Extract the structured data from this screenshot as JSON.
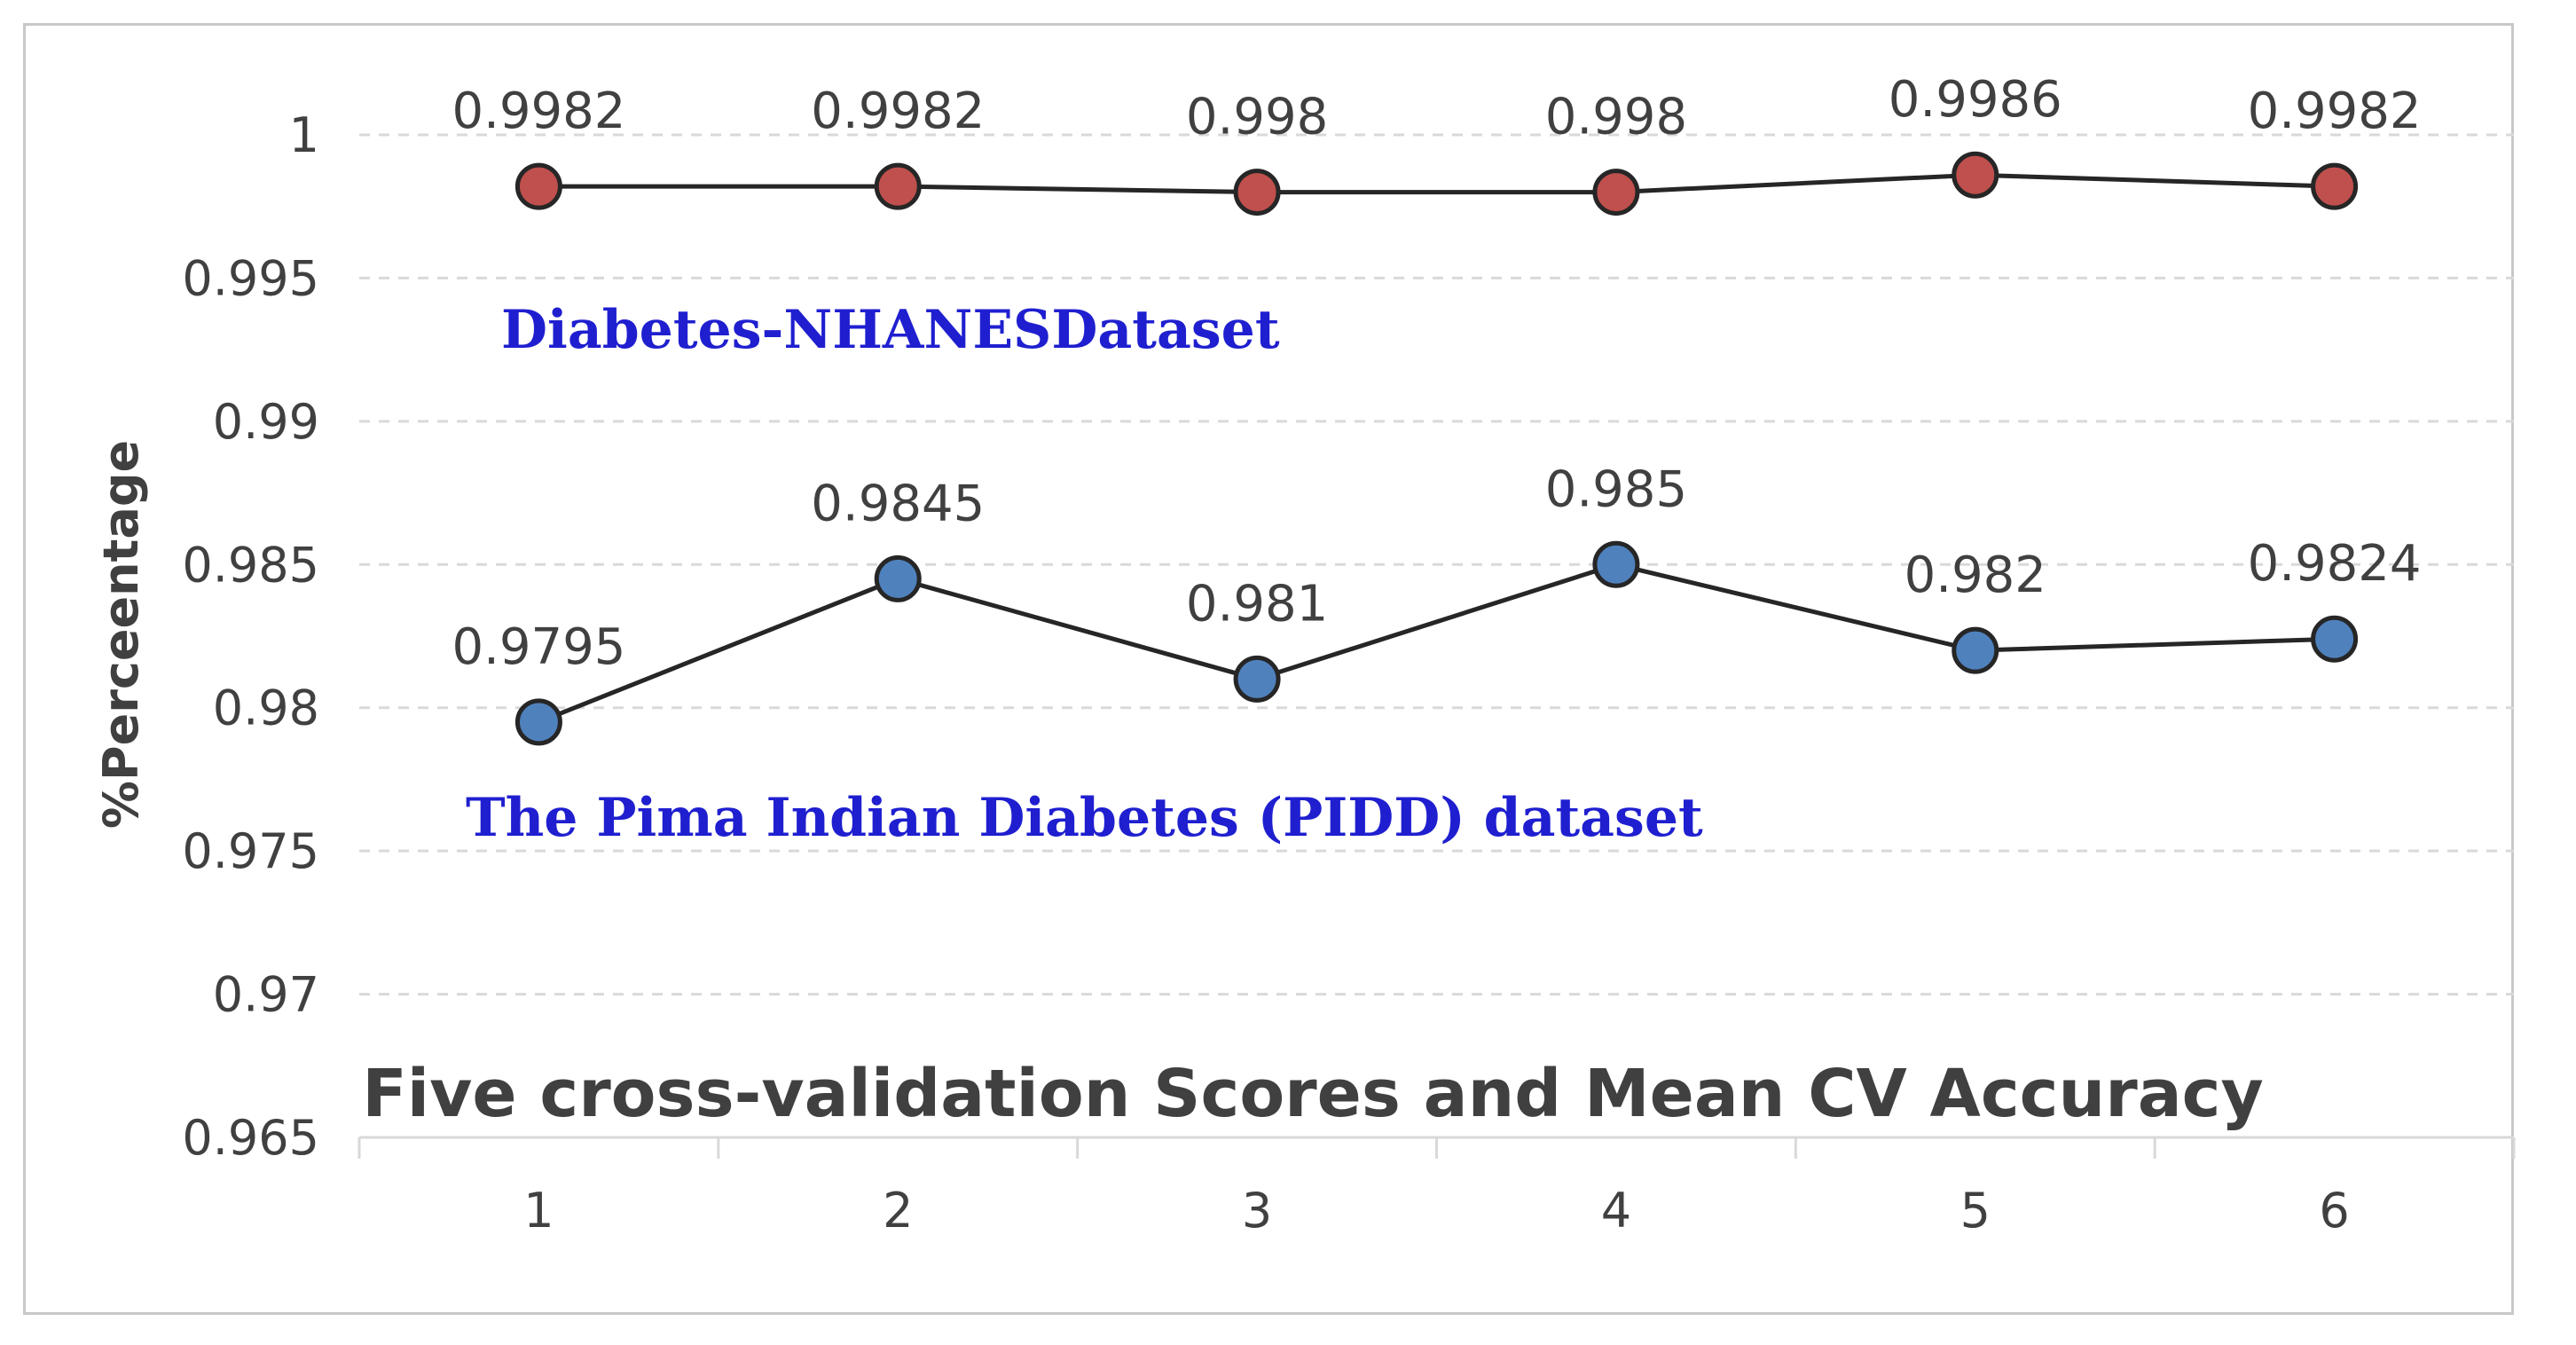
{
  "chart_data": {
    "type": "line",
    "title": "Five cross-validation Scores and Mean CV Accuracy",
    "xlabel": "",
    "ylabel": "%Perceentage",
    "x": [
      "1",
      "2",
      "3",
      "4",
      "5",
      "6"
    ],
    "ylim": [
      0.965,
      1.0
    ],
    "yticks": [
      "0.965",
      "0.97",
      "0.975",
      "0.98",
      "0.985",
      "0.99",
      "0.995",
      "1"
    ],
    "grid": "horizontal dashed",
    "series": [
      {
        "name": "Diabetes-NHANESDataset",
        "values": [
          0.9982,
          0.9982,
          0.998,
          0.998,
          0.9986,
          0.9982
        ],
        "labels": [
          "0.9982",
          "0.9982",
          "0.998",
          "0.998",
          "0.9986",
          "0.9982"
        ],
        "color": "#c0504d"
      },
      {
        "name": "The Pima Indian Diabetes (PIDD) dataset",
        "values": [
          0.9795,
          0.9845,
          0.981,
          0.985,
          0.982,
          0.9824
        ],
        "labels": [
          "0.9795",
          "0.9845",
          "0.981",
          "0.985",
          "0.982",
          "0.9824"
        ],
        "color": "#4f81bd"
      }
    ],
    "annotation_color": "#1f1fd0"
  }
}
